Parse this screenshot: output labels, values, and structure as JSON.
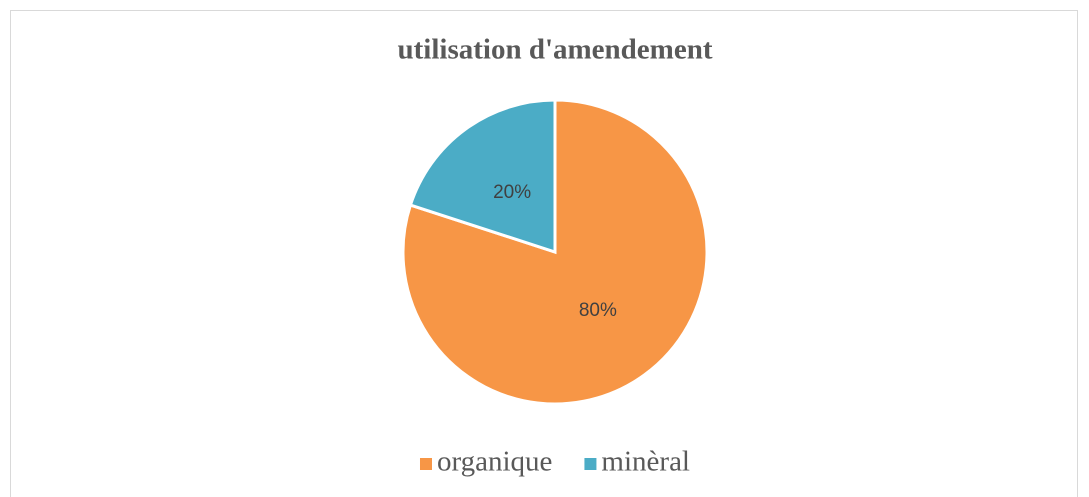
{
  "chart_data": {
    "type": "pie",
    "title": "utilisation d'amendement",
    "categories": [
      "organique",
      "minèral"
    ],
    "values": [
      80,
      20
    ],
    "value_labels": [
      "80%",
      "20%"
    ],
    "colors": [
      "#f79646",
      "#4bacc6"
    ],
    "legend": "bottom"
  }
}
